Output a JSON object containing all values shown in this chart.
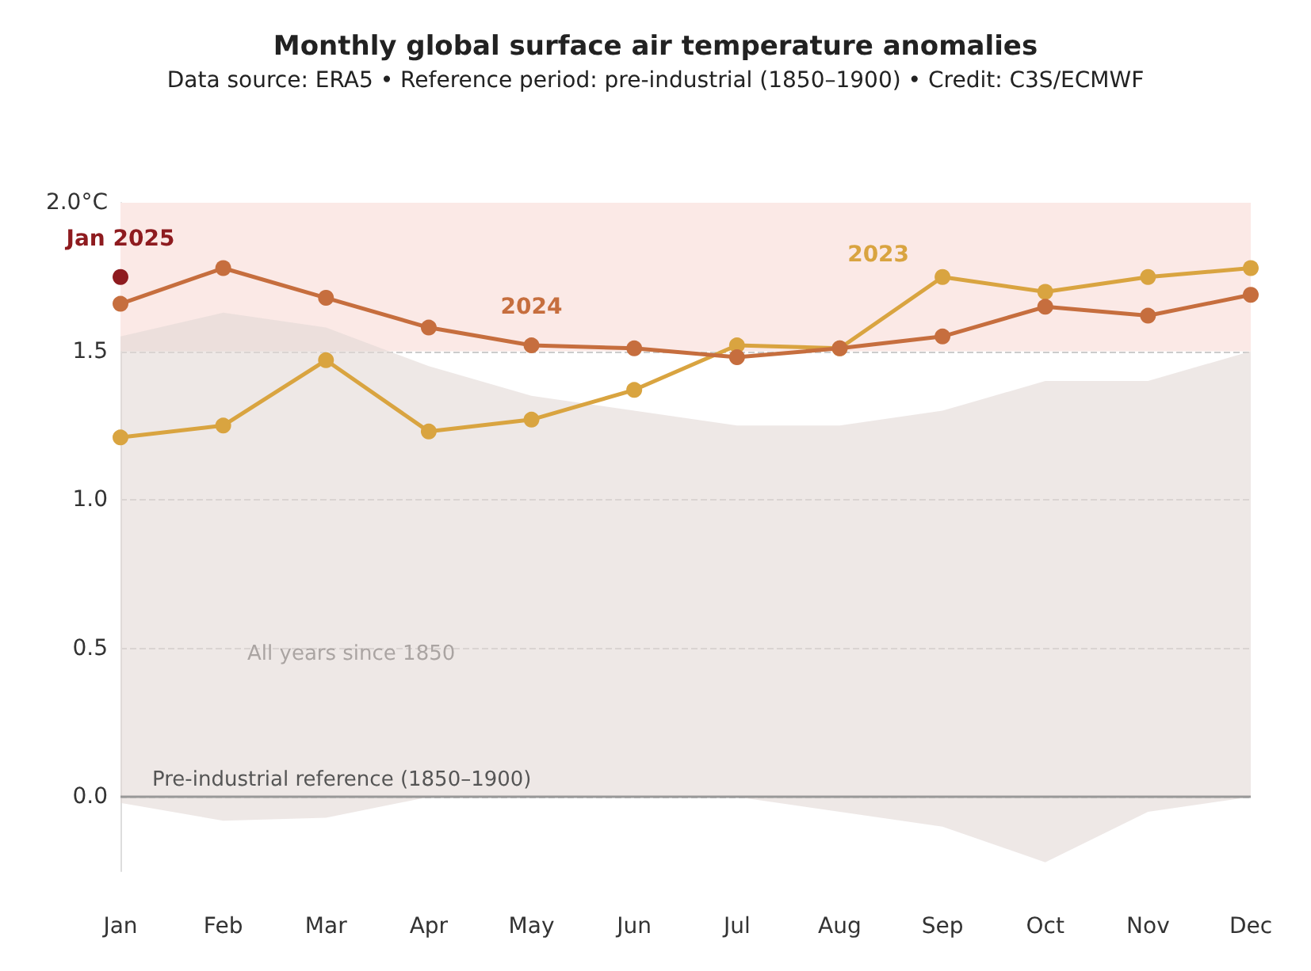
{
  "chart_data": {
    "type": "line",
    "title": "Monthly global surface air temperature anomalies",
    "subtitle": "Data source: ERA5 • Reference period: pre-industrial (1850–1900) • Credit: C3S/ECMWF",
    "categories": [
      "Jan",
      "Feb",
      "Mar",
      "Apr",
      "May",
      "Jun",
      "Jul",
      "Aug",
      "Sep",
      "Oct",
      "Nov",
      "Dec"
    ],
    "series": [
      {
        "name": null,
        "color": "#e3d9d5",
        "values": [
          null,
          null,
          null,
          null,
          null,
          null,
          null,
          null,
          null,
          null,
          null,
          null
        ],
        "lower": [
          -0.02,
          -0.08,
          -0.07,
          0.0,
          0.0,
          0.0,
          0.0,
          -0.05,
          -0.1,
          -0.22,
          -0.05,
          0.0
        ],
        "upper": [
          1.55,
          1.63,
          1.58,
          1.45,
          1.35,
          1.3,
          1.25,
          1.25,
          1.3,
          1.4,
          1.4,
          1.5
        ]
      },
      {
        "name": "2023",
        "color": "#d9a440",
        "values": [
          1.21,
          1.25,
          1.47,
          1.23,
          1.27,
          1.37,
          1.52,
          1.51,
          1.75,
          1.7,
          1.75,
          1.78
        ]
      },
      {
        "name": "2024",
        "color": "#c66e3e",
        "values": [
          1.66,
          1.78,
          1.68,
          1.58,
          1.52,
          1.51,
          1.48,
          1.51,
          1.55,
          1.65,
          1.62,
          1.69
        ]
      },
      {
        "name": "Jan 2025",
        "color": "#8e1b1f",
        "values": [
          1.75,
          null,
          null,
          null,
          null,
          null,
          null,
          null,
          null,
          null,
          null,
          null
        ]
      }
    ],
    "ylim": [
      -0.25,
      2.0
    ],
    "yticks": [
      {
        "value": 0,
        "label": "0.0"
      },
      {
        "value": 0.5,
        "label": "0.5"
      },
      {
        "value": 1,
        "label": "1.0"
      },
      {
        "value": 1.5,
        "label": "1.5"
      },
      {
        "value": 2,
        "label": "2.0°C"
      }
    ],
    "grid": "y",
    "legend": false,
    "marker": "circle",
    "line_style": "solid",
    "bands": [
      {
        "axis": "y",
        "from": 1.5,
        "to": 2.0,
        "color": "#fbe9e6"
      }
    ],
    "ref_lines": [
      {
        "axis": "y",
        "value": 0,
        "label": "Pre-industrial reference (1850–1900)",
        "color": "#999999"
      }
    ],
    "annotations": [
      "All years since 1850"
    ]
  }
}
